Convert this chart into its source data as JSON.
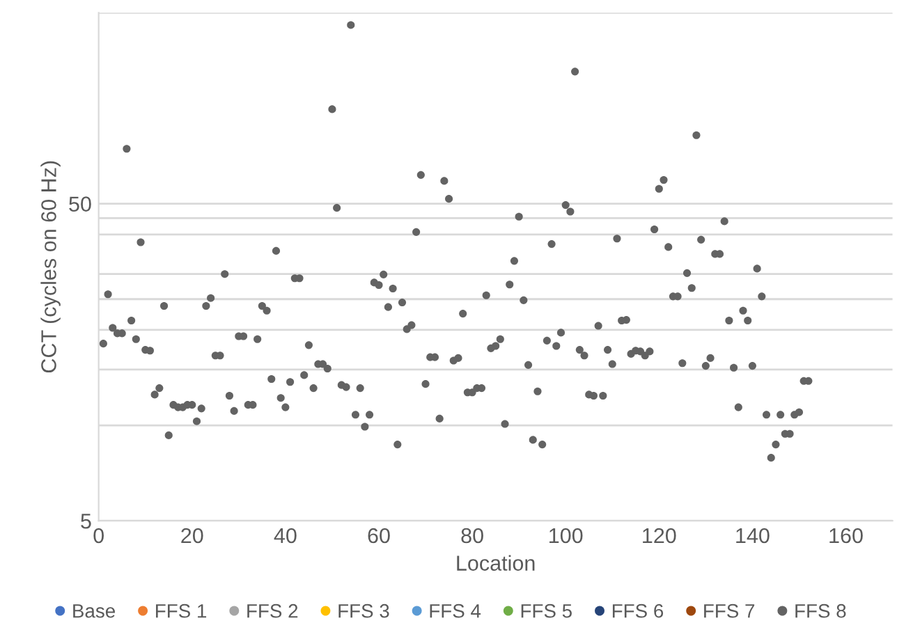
{
  "chart_data": {
    "type": "scatter",
    "xlabel": "Location",
    "ylabel": "CCT (cycles on 60 Hz)",
    "log": "y",
    "grid": "y",
    "legend": "bottom",
    "marker": "circle",
    "xlim": [
      0,
      170
    ],
    "xticks": [
      0,
      20,
      40,
      60,
      80,
      100,
      120,
      140,
      160
    ],
    "ylim": [
      5,
      200
    ],
    "yticks": [
      5,
      {
        "value": 10,
        "label": null
      },
      {
        "value": 15,
        "label": null
      },
      {
        "value": 20,
        "label": null
      },
      {
        "value": 25,
        "label": null
      },
      {
        "value": 30,
        "label": null
      },
      {
        "value": 40,
        "label": null
      },
      {
        "value": 45,
        "label": null
      },
      50,
      {
        "value": 200,
        "label": null
      }
    ],
    "x": [
      1,
      2,
      3,
      4,
      5,
      6,
      7,
      8,
      9,
      10,
      11,
      12,
      13,
      14,
      15,
      16,
      17,
      18,
      19,
      20,
      21,
      22,
      23,
      24,
      25,
      26,
      27,
      28,
      29,
      30,
      31,
      32,
      33,
      34,
      35,
      36,
      37,
      38,
      39,
      40,
      41,
      42,
      43,
      44,
      45,
      46,
      47,
      48,
      49,
      50,
      51,
      52,
      53,
      54,
      55,
      56,
      57,
      58,
      59,
      60,
      61,
      62,
      63,
      64,
      65,
      66,
      67,
      68,
      69,
      70,
      71,
      72,
      73,
      74,
      75,
      76,
      77,
      78,
      79,
      80,
      81,
      82,
      83,
      84,
      85,
      86,
      87,
      88,
      89,
      90,
      91,
      92,
      93,
      94,
      95,
      96,
      97,
      98,
      99,
      100,
      101,
      102,
      103,
      104,
      105,
      106,
      107,
      108,
      109,
      110,
      111,
      112,
      113,
      114,
      115,
      116,
      117,
      118,
      119,
      120,
      121,
      122,
      123,
      124,
      125,
      126,
      127,
      128,
      129,
      130,
      131,
      132,
      133,
      134,
      135,
      136,
      137,
      138,
      139,
      140,
      141,
      142,
      143,
      144,
      145,
      146,
      147,
      148,
      149,
      150,
      151,
      152
    ],
    "series": [
      {
        "name": "Base",
        "color": "#4472c4",
        "values": [
          null,
          null,
          null,
          null,
          null,
          null,
          null,
          null,
          null,
          null,
          null,
          null,
          null,
          null,
          null,
          null,
          null,
          null,
          null,
          null,
          null,
          null,
          null,
          null,
          null,
          null,
          null,
          null,
          null,
          null,
          null,
          null,
          null,
          null,
          null,
          null,
          null,
          null,
          null,
          null,
          null,
          null,
          null,
          null,
          null,
          null,
          null,
          null,
          null,
          null,
          null,
          null,
          null,
          null,
          null,
          null,
          null,
          null,
          null,
          null,
          null,
          null,
          null,
          null,
          null,
          null,
          null,
          null,
          null,
          null,
          null,
          null,
          null,
          null,
          null,
          null,
          null,
          null,
          null,
          null,
          null,
          null,
          null,
          null,
          null,
          null,
          null,
          null,
          null,
          null,
          null,
          null,
          null,
          null,
          null,
          null,
          null,
          null,
          null,
          null,
          null,
          null,
          null,
          null,
          null,
          null,
          null,
          null,
          null,
          null,
          null,
          null,
          null,
          null,
          null,
          null,
          null,
          null,
          null,
          null,
          null,
          null,
          null,
          null,
          null,
          null,
          null,
          null,
          null,
          null,
          null,
          null,
          null,
          null,
          null,
          null,
          null,
          null,
          null,
          null,
          null,
          null,
          null,
          null,
          null,
          null,
          null,
          null,
          null,
          null,
          null,
          null
        ]
      },
      {
        "name": "FFS 1",
        "color": "#ed7d31",
        "values": [
          null,
          null,
          null,
          null,
          null,
          null,
          null,
          null,
          null,
          null,
          null,
          null,
          null,
          null,
          null,
          null,
          null,
          null,
          null,
          null,
          null,
          null,
          null,
          null,
          null,
          null,
          null,
          null,
          null,
          null,
          null,
          null,
          null,
          null,
          null,
          null,
          null,
          null,
          null,
          null,
          null,
          null,
          null,
          null,
          null,
          null,
          null,
          null,
          null,
          null,
          null,
          null,
          null,
          null,
          null,
          null,
          null,
          null,
          null,
          null,
          null,
          null,
          null,
          null,
          null,
          null,
          null,
          null,
          null,
          null,
          null,
          null,
          null,
          null,
          null,
          null,
          null,
          null,
          null,
          null,
          null,
          null,
          null,
          null,
          null,
          null,
          null,
          null,
          null,
          null,
          null,
          null,
          null,
          null,
          null,
          null,
          null,
          null,
          null,
          null,
          null,
          null,
          null,
          null,
          null,
          null,
          null,
          null,
          null,
          null,
          null,
          null,
          null,
          null,
          null,
          null,
          null,
          null,
          null,
          null,
          null,
          null,
          null,
          null,
          null,
          null,
          null,
          null,
          null,
          null,
          null,
          null,
          null,
          null,
          null,
          null,
          null,
          null,
          null,
          null,
          null,
          null,
          null,
          null,
          null,
          null,
          null,
          null,
          null,
          null,
          null,
          null
        ]
      },
      {
        "name": "FFS 2",
        "color": "#a5a5a5",
        "values": [
          null,
          null,
          null,
          null,
          null,
          null,
          null,
          null,
          null,
          null,
          null,
          null,
          null,
          null,
          null,
          null,
          null,
          null,
          null,
          null,
          null,
          null,
          null,
          null,
          null,
          null,
          null,
          null,
          null,
          null,
          null,
          null,
          null,
          null,
          null,
          null,
          null,
          null,
          null,
          null,
          null,
          null,
          null,
          null,
          null,
          null,
          null,
          null,
          null,
          null,
          null,
          null,
          null,
          null,
          null,
          null,
          null,
          null,
          null,
          null,
          null,
          null,
          null,
          null,
          null,
          null,
          null,
          null,
          null,
          null,
          null,
          null,
          null,
          null,
          null,
          null,
          null,
          null,
          null,
          null,
          null,
          null,
          null,
          null,
          null,
          null,
          null,
          null,
          null,
          null,
          null,
          null,
          null,
          null,
          null,
          null,
          null,
          null,
          null,
          null,
          null,
          null,
          null,
          null,
          null,
          null,
          null,
          null,
          null,
          null,
          null,
          null,
          null,
          null,
          null,
          null,
          null,
          null,
          null,
          null,
          null,
          null,
          null,
          null,
          null,
          null,
          null,
          null,
          null,
          null,
          null,
          null,
          null,
          null,
          null,
          null,
          null,
          null,
          null,
          null,
          null,
          null,
          null,
          null,
          null,
          null,
          null,
          null,
          null,
          null,
          null,
          null
        ]
      },
      {
        "name": "FFS 3",
        "color": "#ffc000",
        "values": [
          null,
          null,
          null,
          null,
          null,
          null,
          null,
          null,
          null,
          null,
          null,
          null,
          null,
          null,
          null,
          null,
          null,
          null,
          null,
          null,
          null,
          null,
          null,
          null,
          null,
          null,
          null,
          null,
          null,
          null,
          null,
          null,
          null,
          null,
          null,
          null,
          null,
          null,
          null,
          null,
          null,
          null,
          null,
          null,
          null,
          null,
          null,
          null,
          null,
          null,
          null,
          null,
          null,
          null,
          null,
          null,
          null,
          null,
          null,
          null,
          null,
          null,
          null,
          null,
          null,
          null,
          null,
          null,
          null,
          null,
          null,
          null,
          null,
          null,
          null,
          null,
          null,
          null,
          null,
          null,
          null,
          null,
          null,
          null,
          null,
          null,
          null,
          null,
          null,
          null,
          null,
          null,
          null,
          null,
          null,
          null,
          null,
          null,
          null,
          null,
          null,
          null,
          null,
          null,
          null,
          null,
          null,
          null,
          null,
          null,
          null,
          null,
          null,
          null,
          null,
          null,
          null,
          null,
          null,
          null,
          null,
          null,
          null,
          null,
          null,
          null,
          null,
          null,
          null,
          null,
          null,
          null,
          null,
          null,
          null,
          null,
          null,
          null,
          null,
          null,
          null,
          null,
          null,
          null,
          null,
          null,
          null,
          null,
          null,
          null,
          null,
          null
        ]
      },
      {
        "name": "FFS 4",
        "color": "#5b9bd5",
        "values": [
          null,
          null,
          null,
          null,
          null,
          null,
          null,
          null,
          null,
          null,
          null,
          null,
          null,
          null,
          null,
          null,
          null,
          null,
          null,
          null,
          null,
          null,
          null,
          null,
          null,
          null,
          null,
          null,
          null,
          null,
          null,
          null,
          null,
          null,
          null,
          null,
          null,
          null,
          null,
          null,
          null,
          null,
          null,
          null,
          null,
          null,
          null,
          null,
          null,
          null,
          null,
          null,
          null,
          null,
          null,
          null,
          null,
          null,
          null,
          null,
          null,
          null,
          null,
          null,
          null,
          null,
          null,
          null,
          null,
          null,
          null,
          null,
          null,
          null,
          null,
          null,
          null,
          null,
          null,
          null,
          null,
          null,
          null,
          null,
          null,
          null,
          null,
          null,
          null,
          null,
          null,
          null,
          null,
          null,
          null,
          null,
          null,
          null,
          null,
          null,
          null,
          null,
          null,
          null,
          null,
          null,
          null,
          null,
          null,
          null,
          null,
          null,
          null,
          null,
          null,
          null,
          null,
          null,
          null,
          null,
          null,
          null,
          null,
          null,
          null,
          null,
          null,
          null,
          null,
          null,
          null,
          null,
          null,
          null,
          null,
          null,
          null,
          null,
          null,
          null,
          null,
          null,
          null,
          null,
          null,
          null,
          null,
          null,
          null,
          null,
          null,
          null
        ]
      },
      {
        "name": "FFS 5",
        "color": "#70ad47",
        "values": [
          null,
          null,
          null,
          null,
          null,
          null,
          null,
          null,
          null,
          null,
          null,
          null,
          null,
          null,
          null,
          null,
          null,
          null,
          null,
          null,
          null,
          null,
          null,
          null,
          null,
          null,
          null,
          null,
          null,
          null,
          null,
          null,
          null,
          null,
          null,
          null,
          null,
          null,
          null,
          null,
          null,
          null,
          null,
          null,
          null,
          null,
          null,
          null,
          null,
          null,
          null,
          null,
          null,
          null,
          null,
          null,
          null,
          null,
          null,
          null,
          null,
          null,
          null,
          null,
          null,
          null,
          null,
          null,
          null,
          null,
          null,
          null,
          null,
          null,
          null,
          null,
          null,
          null,
          null,
          null,
          null,
          null,
          null,
          null,
          null,
          null,
          null,
          null,
          null,
          null,
          null,
          null,
          null,
          null,
          null,
          null,
          null,
          null,
          null,
          null,
          null,
          null,
          null,
          null,
          null,
          null,
          null,
          null,
          null,
          null,
          null,
          null,
          null,
          null,
          null,
          null,
          null,
          null,
          null,
          null,
          null,
          null,
          null,
          null,
          null,
          null,
          null,
          null,
          null,
          null,
          null,
          null,
          null,
          null,
          null,
          null,
          null,
          null,
          null,
          null,
          null,
          null,
          null,
          null,
          null,
          null,
          null,
          null,
          null,
          null,
          null,
          null
        ]
      },
      {
        "name": "FFS 6",
        "color": "#264478",
        "values": [
          null,
          null,
          null,
          null,
          null,
          null,
          null,
          null,
          null,
          null,
          null,
          null,
          null,
          null,
          null,
          null,
          null,
          null,
          null,
          null,
          null,
          null,
          null,
          null,
          null,
          null,
          null,
          null,
          null,
          null,
          null,
          null,
          null,
          null,
          null,
          null,
          null,
          null,
          null,
          null,
          null,
          null,
          null,
          null,
          null,
          null,
          null,
          null,
          null,
          null,
          null,
          null,
          null,
          null,
          null,
          null,
          null,
          null,
          null,
          null,
          null,
          null,
          null,
          null,
          null,
          null,
          null,
          null,
          null,
          null,
          null,
          null,
          null,
          null,
          null,
          null,
          null,
          null,
          null,
          null,
          null,
          null,
          null,
          null,
          null,
          null,
          null,
          null,
          null,
          null,
          null,
          null,
          null,
          null,
          null,
          null,
          null,
          null,
          null,
          null,
          null,
          null,
          null,
          null,
          null,
          null,
          null,
          null,
          null,
          null,
          null,
          null,
          null,
          null,
          null,
          null,
          null,
          null,
          null,
          null,
          null,
          null,
          null,
          null,
          null,
          null,
          null,
          null,
          null,
          null,
          null,
          null,
          null,
          null,
          null,
          null,
          null,
          null,
          null,
          null,
          null,
          null,
          null,
          null,
          null,
          null,
          null,
          null,
          null,
          null,
          null,
          null
        ]
      },
      {
        "name": "FFS 7",
        "color": "#9e480e",
        "values": [
          null,
          null,
          null,
          null,
          null,
          null,
          null,
          null,
          null,
          null,
          null,
          null,
          null,
          null,
          null,
          null,
          null,
          null,
          null,
          null,
          null,
          null,
          null,
          null,
          null,
          null,
          null,
          null,
          null,
          null,
          null,
          null,
          null,
          null,
          null,
          null,
          null,
          null,
          null,
          null,
          null,
          null,
          null,
          null,
          null,
          null,
          null,
          null,
          null,
          null,
          null,
          null,
          null,
          null,
          null,
          null,
          null,
          null,
          null,
          null,
          null,
          null,
          null,
          null,
          null,
          null,
          null,
          null,
          null,
          null,
          null,
          null,
          null,
          null,
          null,
          null,
          null,
          null,
          null,
          null,
          null,
          null,
          null,
          null,
          null,
          null,
          null,
          null,
          null,
          null,
          null,
          null,
          null,
          null,
          null,
          null,
          null,
          null,
          null,
          null,
          null,
          null,
          null,
          null,
          null,
          null,
          null,
          null,
          null,
          null,
          null,
          null,
          null,
          null,
          null,
          null,
          null,
          null,
          null,
          null,
          null,
          null,
          null,
          null,
          null,
          null,
          null,
          null,
          null,
          null,
          null,
          null,
          null,
          null,
          null,
          null,
          null,
          null,
          null,
          null,
          null,
          null,
          null,
          null,
          null,
          null,
          null,
          null,
          null,
          null,
          null,
          null
        ]
      },
      {
        "name": "FFS 8",
        "color": "#636363",
        "values": [
          18.1,
          25.9,
          20.3,
          19.5,
          19.5,
          74.5,
          21.4,
          18.7,
          37.8,
          17.3,
          17.2,
          12.5,
          13.1,
          23.8,
          9.3,
          11.6,
          11.4,
          11.4,
          11.6,
          11.6,
          10.3,
          11.3,
          23.8,
          25.2,
          16.6,
          16.6,
          30.0,
          12.4,
          11.1,
          19.1,
          19.1,
          11.6,
          11.6,
          18.7,
          23.8,
          23.0,
          14.0,
          35.5,
          12.2,
          11.4,
          13.7,
          29.1,
          29.1,
          14.4,
          17.9,
          13.1,
          15.6,
          15.6,
          15.1,
          99.3,
          48.5,
          13.4,
          13.2,
          183,
          10.8,
          13.1,
          9.9,
          10.8,
          28.2,
          27.7,
          29.9,
          23.6,
          27.0,
          8.7,
          24.4,
          20.1,
          20.7,
          40.7,
          61.6,
          13.5,
          16.4,
          16.4,
          10.5,
          59.0,
          51.8,
          16.0,
          16.3,
          22.5,
          12.7,
          12.7,
          13.1,
          13.1,
          25.7,
          17.5,
          17.8,
          18.7,
          10.1,
          27.8,
          33.0,
          45.5,
          24.8,
          15.5,
          9.0,
          12.8,
          8.7,
          18.5,
          37.3,
          17.8,
          19.6,
          49.5,
          47.2,
          130.5,
          17.3,
          16.6,
          12.5,
          12.4,
          20.6,
          12.4,
          17.3,
          15.6,
          38.8,
          21.4,
          21.5,
          16.8,
          17.2,
          17.1,
          16.6,
          17.1,
          41.5,
          55.7,
          59.4,
          36.5,
          25.5,
          25.5,
          15.7,
          30.2,
          27.1,
          82.2,
          38.5,
          15.4,
          16.3,
          34.7,
          34.7,
          44.0,
          21.4,
          15.2,
          11.4,
          23.0,
          21.4,
          15.4,
          31.2,
          25.5,
          10.8,
          7.9,
          8.7,
          10.8,
          9.4,
          9.4,
          10.8,
          11.0,
          13.8,
          13.8
        ]
      }
    ]
  }
}
